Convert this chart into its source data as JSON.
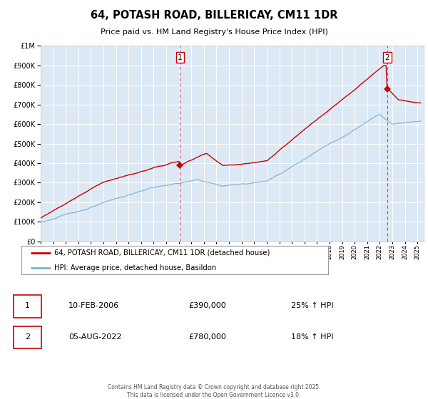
{
  "title": "64, POTASH ROAD, BILLERICAY, CM11 1DR",
  "subtitle": "Price paid vs. HM Land Registry's House Price Index (HPI)",
  "plot_bg_color": "#dce9f5",
  "grid_color": "#ffffff",
  "red_line_color": "#cc0000",
  "blue_line_color": "#7bafd4",
  "sale1_date": 2006.1,
  "sale1_price": 390000,
  "sale2_date": 2022.58,
  "sale2_price": 780000,
  "vline_color": "#cc0000",
  "legend1": "64, POTASH ROAD, BILLERICAY, CM11 1DR (detached house)",
  "legend2": "HPI: Average price, detached house, Basildon",
  "table_row1": [
    "1",
    "10-FEB-2006",
    "£390,000",
    "25% ↑ HPI"
  ],
  "table_row2": [
    "2",
    "05-AUG-2022",
    "£780,000",
    "18% ↑ HPI"
  ],
  "footnote1": "Contains HM Land Registry data © Crown copyright and database right 2025.",
  "footnote2": "This data is licensed under the Open Government Licence v3.0.",
  "ylim": [
    0,
    1000000
  ],
  "xstart": 1995,
  "xend": 2025
}
